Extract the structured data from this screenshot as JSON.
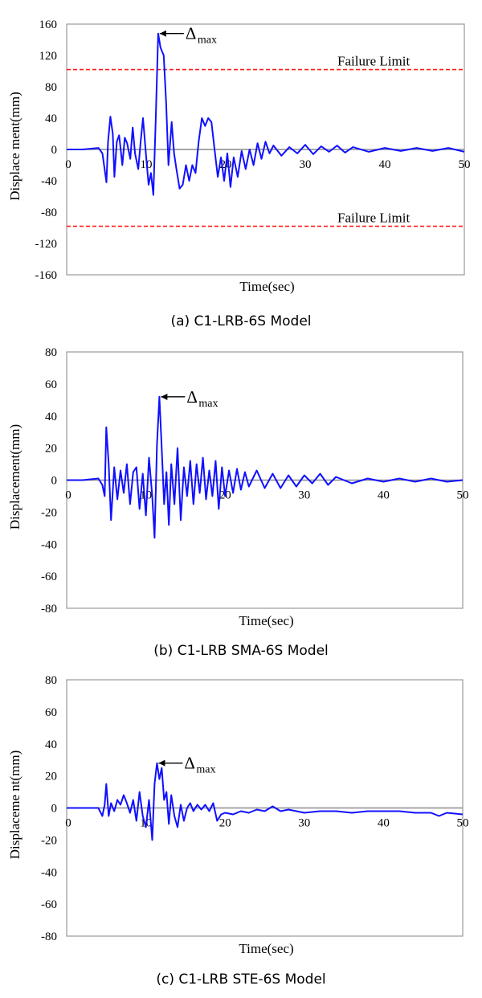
{
  "colors": {
    "trace": "#1010ff",
    "failure_line": "#ff1a1a",
    "zero_line": "#8c8c8c",
    "frame": "#9a9a9a",
    "text": "#000000"
  },
  "chart_data": [
    {
      "type": "line",
      "caption": "(a) C1-LRB-6S Model",
      "xlabel": "Time(sec)",
      "ylabel": "Displace ment(mm)",
      "xlim": [
        0,
        50
      ],
      "ylim": [
        -160,
        160
      ],
      "xticks": [
        "0",
        "10",
        "20",
        "30",
        "40",
        "50"
      ],
      "yticks": [
        "160",
        "120",
        "80",
        "40",
        "0",
        "-40",
        "-80",
        "-120",
        "-160"
      ],
      "peak_label": "Δ",
      "peak_sub": "max",
      "peak": {
        "x": 11.5,
        "y": 148
      },
      "limits": [
        {
          "label": "Failure Limit",
          "y": 102
        },
        {
          "label": "Failure Limit",
          "y": -98
        }
      ],
      "series": [
        {
          "x": [
            0,
            2,
            4,
            4.5,
            5,
            5.2,
            5.5,
            5.8,
            6,
            6.3,
            6.6,
            7,
            7.3,
            7.6,
            8,
            8.3,
            8.6,
            9,
            9.3,
            9.6,
            10,
            10.3,
            10.6,
            10.9,
            11.2,
            11.5,
            11.8,
            12.2,
            12.5,
            12.8,
            13.2,
            13.5,
            13.8,
            14.2,
            14.6,
            15,
            15.4,
            15.8,
            16.2,
            16.6,
            17,
            17.4,
            17.8,
            18.2,
            18.6,
            19,
            19.4,
            19.8,
            20.2,
            20.6,
            21,
            21.5,
            22,
            22.5,
            23,
            23.5,
            24,
            24.5,
            25,
            25.5,
            26,
            27,
            28,
            29,
            30,
            31,
            32,
            33,
            34,
            35,
            36,
            38,
            40,
            42,
            44,
            46,
            48,
            50
          ],
          "y": [
            0,
            0,
            2,
            -5,
            -42,
            10,
            42,
            20,
            -35,
            10,
            18,
            -20,
            15,
            8,
            -12,
            28,
            -5,
            -25,
            10,
            40,
            -10,
            -45,
            -30,
            -58,
            40,
            148,
            130,
            120,
            60,
            -20,
            35,
            -5,
            -25,
            -50,
            -45,
            -20,
            -40,
            -20,
            -30,
            10,
            40,
            30,
            40,
            35,
            0,
            -35,
            -10,
            -40,
            -5,
            -48,
            -10,
            -35,
            -2,
            -25,
            0,
            -20,
            8,
            -12,
            10,
            -5,
            5,
            -8,
            3,
            -5,
            6,
            -6,
            4,
            -3,
            5,
            -4,
            3,
            -3,
            2,
            -2,
            2,
            -2,
            2,
            -3
          ]
        }
      ]
    },
    {
      "type": "line",
      "caption": "(b) C1-LRB SMA-6S Model",
      "xlabel": "Time(sec)",
      "ylabel": "Displacement(mm)",
      "xlim": [
        0,
        50
      ],
      "ylim": [
        -80,
        80
      ],
      "xticks": [
        "0",
        "10",
        "20",
        "30",
        "40",
        "50"
      ],
      "yticks": [
        "80",
        "60",
        "40",
        "20",
        "0",
        "-20",
        "-40",
        "-60",
        "-80"
      ],
      "peak_label": "Δ",
      "peak_sub": "max",
      "peak": {
        "x": 11.7,
        "y": 52
      },
      "limits": [],
      "series": [
        {
          "x": [
            0,
            2,
            4,
            4.5,
            4.8,
            5,
            5.3,
            5.6,
            6,
            6.4,
            6.8,
            7.2,
            7.6,
            8,
            8.4,
            8.8,
            9.2,
            9.6,
            10,
            10.4,
            10.8,
            11.1,
            11.4,
            11.7,
            12,
            12.3,
            12.6,
            12.9,
            13.2,
            13.6,
            14,
            14.4,
            14.8,
            15.2,
            15.6,
            16,
            16.4,
            16.8,
            17.2,
            17.6,
            18,
            18.4,
            18.8,
            19.2,
            19.6,
            20,
            20.5,
            21,
            21.5,
            22,
            22.5,
            23,
            24,
            25,
            26,
            27,
            28,
            29,
            30,
            31,
            32,
            33,
            34,
            36,
            38,
            40,
            42,
            44,
            46,
            48,
            50
          ],
          "y": [
            0,
            0,
            1,
            -3,
            -10,
            33,
            10,
            -25,
            8,
            -12,
            6,
            -8,
            10,
            -15,
            5,
            8,
            -18,
            4,
            -22,
            14,
            -10,
            -36,
            22,
            52,
            20,
            -15,
            5,
            -28,
            10,
            -15,
            20,
            -25,
            8,
            -10,
            12,
            -15,
            10,
            -8,
            14,
            -12,
            6,
            -10,
            12,
            -18,
            8,
            -10,
            6,
            -8,
            7,
            -6,
            5,
            -4,
            6,
            -5,
            4,
            -5,
            3,
            -4,
            3,
            -2,
            4,
            -3,
            2,
            -2,
            1,
            -1,
            1,
            -1,
            1,
            -1,
            0
          ]
        }
      ]
    },
    {
      "type": "line",
      "caption": "(c) C1-LRB STE-6S Model",
      "xlabel": "Time(sec)",
      "ylabel": "Displaceme nt(mm)",
      "xlim": [
        0,
        50
      ],
      "ylim": [
        -80,
        80
      ],
      "xticks": [
        "0",
        "10",
        "20",
        "30",
        "40",
        "50"
      ],
      "yticks": [
        "80",
        "60",
        "40",
        "20",
        "0",
        "-20",
        "-40",
        "-60",
        "-80"
      ],
      "peak_label": "Δ",
      "peak_sub": "max",
      "peak": {
        "x": 11.4,
        "y": 28
      },
      "limits": [],
      "series": [
        {
          "x": [
            0,
            2,
            4,
            4.5,
            4.8,
            5,
            5.3,
            5.6,
            6,
            6.4,
            6.8,
            7.2,
            7.6,
            8,
            8.4,
            8.8,
            9.2,
            9.6,
            10,
            10.4,
            10.8,
            11.1,
            11.4,
            11.7,
            12,
            12.3,
            12.6,
            12.9,
            13.2,
            13.6,
            14,
            14.4,
            14.8,
            15.2,
            15.6,
            16,
            16.5,
            17,
            17.5,
            18,
            18.5,
            19,
            19.5,
            20,
            21,
            22,
            23,
            24,
            25,
            26,
            27,
            28,
            29,
            30,
            32,
            34,
            36,
            38,
            40,
            42,
            44,
            46,
            47,
            48,
            50
          ],
          "y": [
            0,
            0,
            0,
            -5,
            2,
            15,
            -5,
            3,
            -2,
            5,
            2,
            8,
            3,
            -3,
            5,
            -8,
            10,
            -5,
            -12,
            5,
            -20,
            15,
            28,
            18,
            25,
            5,
            10,
            -10,
            8,
            -5,
            -12,
            2,
            -8,
            0,
            3,
            -2,
            2,
            -1,
            2,
            -2,
            3,
            -8,
            -4,
            -3,
            -4,
            -2,
            -3,
            -1,
            -2,
            1,
            -2,
            -1,
            -2,
            -3,
            -2,
            -2,
            -3,
            -2,
            -2,
            -2,
            -3,
            -3,
            -5,
            -3,
            -4
          ]
        }
      ]
    }
  ]
}
